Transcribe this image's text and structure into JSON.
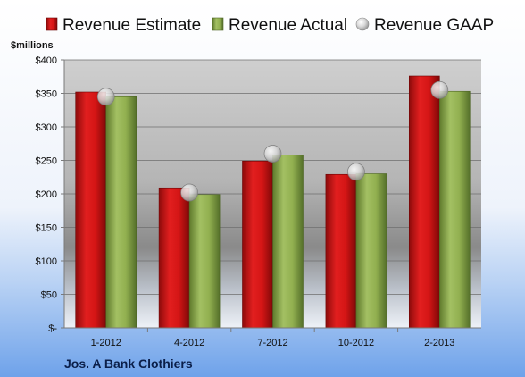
{
  "chart_data": {
    "type": "bar",
    "categories": [
      "1-2012",
      "4-2012",
      "7-2012",
      "10-2012",
      "2-2013"
    ],
    "series": [
      {
        "name": "Revenue Estimate",
        "type": "bar",
        "color": "#cc1111",
        "values": [
          352,
          209,
          249,
          229,
          376
        ]
      },
      {
        "name": "Revenue Actual",
        "type": "bar",
        "color": "#8aa74a",
        "values": [
          345,
          199,
          258,
          230,
          353
        ]
      },
      {
        "name": "Revenue GAAP",
        "type": "scatter",
        "color": "#c8c8c8",
        "values": [
          345,
          202,
          260,
          233,
          355
        ]
      }
    ],
    "ylabel": "$millions",
    "ylim": [
      0,
      400
    ],
    "yticks": [
      0,
      50,
      100,
      150,
      200,
      250,
      300,
      350,
      400
    ],
    "ytick_labels": [
      "$-",
      "$50",
      "$100",
      "$150",
      "$200",
      "$250",
      "$300",
      "$350",
      "$400"
    ],
    "grid": true,
    "legend_position": "top",
    "company": "Jos. A Bank Clothiers"
  }
}
